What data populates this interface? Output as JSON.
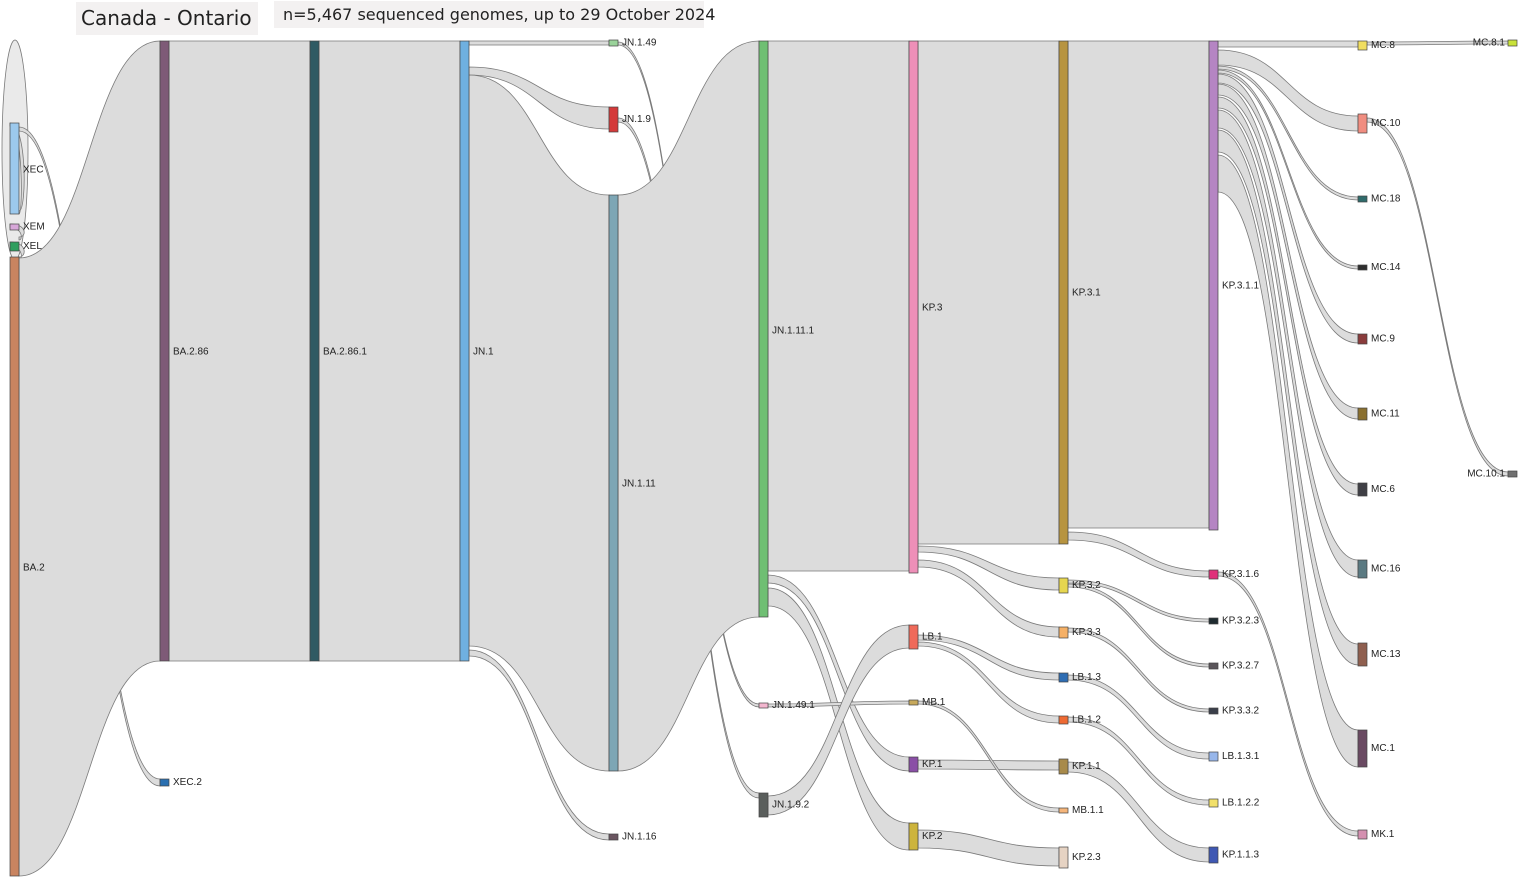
{
  "header": {
    "title": "Canada - Ontario",
    "subtitle": "n=5,467 sequenced genomes, up to 29 October 2024"
  },
  "nodes": [
    {
      "name": "XEC",
      "color": "#9cc9ed"
    },
    {
      "name": "XEM",
      "color": "#d7a7d9"
    },
    {
      "name": "XEL",
      "color": "#2e9e5e"
    },
    {
      "name": "BA.2",
      "color": "#c98460"
    },
    {
      "name": "BA.2.86",
      "color": "#7e5a77"
    },
    {
      "name": "XEC.2",
      "color": "#2a6fb0"
    },
    {
      "name": "BA.2.86.1",
      "color": "#2f5a63"
    },
    {
      "name": "JN.1",
      "color": "#6fb0e0"
    },
    {
      "name": "JN.1.49",
      "color": "#9ad39a"
    },
    {
      "name": "JN.1.9",
      "color": "#d43a3a"
    },
    {
      "name": "JN.1.11",
      "color": "#7da6b5"
    },
    {
      "name": "JN.1.16",
      "color": "#6a5560"
    },
    {
      "name": "JN.1.11.1",
      "color": "#6fbf73"
    },
    {
      "name": "JN.1.49.1",
      "color": "#f3b6cf"
    },
    {
      "name": "JN.1.9.2",
      "color": "#5a5e5c"
    },
    {
      "name": "KP.3",
      "color": "#ee8fb8"
    },
    {
      "name": "LB.1",
      "color": "#ef6a5a"
    },
    {
      "name": "MB.1",
      "color": "#c7a95c"
    },
    {
      "name": "KP.1",
      "color": "#8a4fa6"
    },
    {
      "name": "KP.2",
      "color": "#cdb43c"
    },
    {
      "name": "KP.3.1",
      "color": "#b79440"
    },
    {
      "name": "KP.3.2",
      "color": "#e6d64f"
    },
    {
      "name": "KP.3.3",
      "color": "#f5b066"
    },
    {
      "name": "LB.1.3",
      "color": "#2e6db3"
    },
    {
      "name": "LB.1.2",
      "color": "#ee6a33"
    },
    {
      "name": "KP.1.1",
      "color": "#a88a4a"
    },
    {
      "name": "MB.1.1",
      "color": "#f5b57a"
    },
    {
      "name": "KP.2.3",
      "color": "#e6d3c3"
    },
    {
      "name": "KP.3.1.1",
      "color": "#b585c3"
    },
    {
      "name": "KP.3.1.6",
      "color": "#e0317a"
    },
    {
      "name": "KP.3.2.3",
      "color": "#1e2b30"
    },
    {
      "name": "KP.3.2.7",
      "color": "#5a555a"
    },
    {
      "name": "KP.3.3.2",
      "color": "#3a3f4a"
    },
    {
      "name": "LB.1.3.1",
      "color": "#97b6ea"
    },
    {
      "name": "LB.1.2.2",
      "color": "#f2e06a"
    },
    {
      "name": "KP.1.1.3",
      "color": "#3f58b3"
    },
    {
      "name": "MC.8",
      "color": "#f0de60"
    },
    {
      "name": "MC.10",
      "color": "#f08d80"
    },
    {
      "name": "MC.18",
      "color": "#2f6b6b"
    },
    {
      "name": "MC.14",
      "color": "#2e2e2e"
    },
    {
      "name": "MC.9",
      "color": "#8a3c3c"
    },
    {
      "name": "MC.11",
      "color": "#8a7030"
    },
    {
      "name": "MC.6",
      "color": "#3f3f45"
    },
    {
      "name": "MC.16",
      "color": "#5b7a82"
    },
    {
      "name": "MC.13",
      "color": "#8f5f4f"
    },
    {
      "name": "MC.1",
      "color": "#6a4a62"
    },
    {
      "name": "MK.1",
      "color": "#d490b0"
    },
    {
      "name": "MC.8.1",
      "color": "#c9e23a"
    },
    {
      "name": "MC.10.1",
      "color": "#707070"
    }
  ],
  "links": [
    {
      "source": "XEC",
      "target": "XEC.2"
    },
    {
      "source": "XEM",
      "target": "XEC"
    },
    {
      "source": "XEL",
      "target": "XEM"
    },
    {
      "source": "BA.2",
      "target": "XEL"
    },
    {
      "source": "BA.2",
      "target": "BA.2.86"
    },
    {
      "source": "BA.2.86",
      "target": "BA.2.86.1"
    },
    {
      "source": "BA.2.86.1",
      "target": "JN.1"
    },
    {
      "source": "JN.1",
      "target": "JN.1.49"
    },
    {
      "source": "JN.1",
      "target": "JN.1.9"
    },
    {
      "source": "JN.1",
      "target": "JN.1.11"
    },
    {
      "source": "JN.1",
      "target": "JN.1.16"
    },
    {
      "source": "JN.1.49",
      "target": "JN.1.49.1"
    },
    {
      "source": "JN.1.9",
      "target": "JN.1.9.2"
    },
    {
      "source": "JN.1.11",
      "target": "JN.1.11.1"
    },
    {
      "source": "JN.1.11.1",
      "target": "KP.3"
    },
    {
      "source": "JN.1.11.1",
      "target": "KP.1"
    },
    {
      "source": "JN.1.11.1",
      "target": "KP.2"
    },
    {
      "source": "JN.1.49.1",
      "target": "MB.1"
    },
    {
      "source": "JN.1.9.2",
      "target": "LB.1"
    },
    {
      "source": "KP.3",
      "target": "KP.3.1"
    },
    {
      "source": "KP.3",
      "target": "KP.3.2"
    },
    {
      "source": "KP.3",
      "target": "KP.3.3"
    },
    {
      "source": "LB.1",
      "target": "LB.1.3"
    },
    {
      "source": "LB.1",
      "target": "LB.1.2"
    },
    {
      "source": "KP.1",
      "target": "KP.1.1"
    },
    {
      "source": "MB.1",
      "target": "MB.1.1"
    },
    {
      "source": "KP.2",
      "target": "KP.2.3"
    },
    {
      "source": "KP.3.1",
      "target": "KP.3.1.1"
    },
    {
      "source": "KP.3.1",
      "target": "KP.3.1.6"
    },
    {
      "source": "KP.3.2",
      "target": "KP.3.2.3"
    },
    {
      "source": "KP.3.2",
      "target": "KP.3.2.7"
    },
    {
      "source": "KP.3.3",
      "target": "KP.3.3.2"
    },
    {
      "source": "LB.1.3",
      "target": "LB.1.3.1"
    },
    {
      "source": "LB.1.2",
      "target": "LB.1.2.2"
    },
    {
      "source": "KP.1.1",
      "target": "KP.1.1.3"
    },
    {
      "source": "KP.3.1.1",
      "target": "MC.8"
    },
    {
      "source": "KP.3.1.1",
      "target": "MC.10"
    },
    {
      "source": "KP.3.1.1",
      "target": "MC.18"
    },
    {
      "source": "KP.3.1.1",
      "target": "MC.14"
    },
    {
      "source": "KP.3.1.1",
      "target": "MC.9"
    },
    {
      "source": "KP.3.1.1",
      "target": "MC.11"
    },
    {
      "source": "KP.3.1.1",
      "target": "MC.6"
    },
    {
      "source": "KP.3.1.1",
      "target": "MC.16"
    },
    {
      "source": "KP.3.1.1",
      "target": "MC.13"
    },
    {
      "source": "KP.3.1.1",
      "target": "MC.1"
    },
    {
      "source": "KP.3.1.6",
      "target": "MK.1"
    },
    {
      "source": "MC.8",
      "target": "MC.8.1"
    },
    {
      "source": "MC.10",
      "target": "MC.10.1"
    }
  ]
}
